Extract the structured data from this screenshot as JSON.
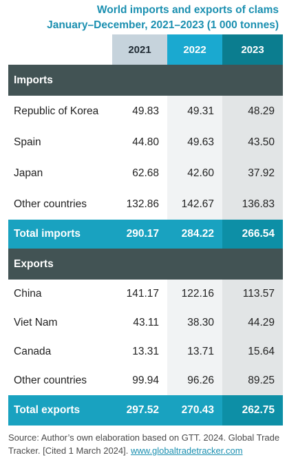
{
  "title": {
    "line1": "World imports and exports of clams",
    "line2": "January–December, 2021–2023 (1 000 tonnes)"
  },
  "years": [
    "2021",
    "2022",
    "2023"
  ],
  "imports": {
    "heading": "Imports",
    "rows": [
      {
        "country": "Republic of Korea",
        "values": [
          "49.83",
          "49.31",
          "48.29"
        ]
      },
      {
        "country": "Spain",
        "values": [
          "44.80",
          "49.63",
          "43.50"
        ]
      },
      {
        "country": "Japan",
        "values": [
          "62.68",
          "42.60",
          "37.92"
        ]
      },
      {
        "country": "Other countries",
        "values": [
          "132.86",
          "142.67",
          "136.83"
        ]
      }
    ],
    "total": {
      "label": "Total imports",
      "values": [
        "290.17",
        "284.22",
        "266.54"
      ]
    }
  },
  "exports": {
    "heading": "Exports",
    "rows": [
      {
        "country": "China",
        "values": [
          "141.17",
          "122.16",
          "113.57"
        ]
      },
      {
        "country": "Viet Nam",
        "values": [
          "43.11",
          "38.30",
          "44.29"
        ]
      },
      {
        "country": "Canada",
        "values": [
          "13.31",
          "13.71",
          "15.64"
        ]
      },
      {
        "country": "Other countries",
        "values": [
          "99.94",
          "96.26",
          "89.25"
        ]
      }
    ],
    "total": {
      "label": "Total exports",
      "values": [
        "297.52",
        "270.43",
        "262.75"
      ]
    }
  },
  "source": {
    "text": "Source: Author’s own elaboration based on GTT. 2024. Global Trade Tracker. [Cited 1 March 2024].",
    "link": "www.globaltradetracker.com"
  },
  "colors": {
    "title": "#1a8fb0",
    "section_bg": "#425354",
    "total_bg": "#19a2c0",
    "year_2021": "#c6d3dc",
    "year_2022": "#1aa9d0",
    "year_2023": "#0b7d8f"
  }
}
